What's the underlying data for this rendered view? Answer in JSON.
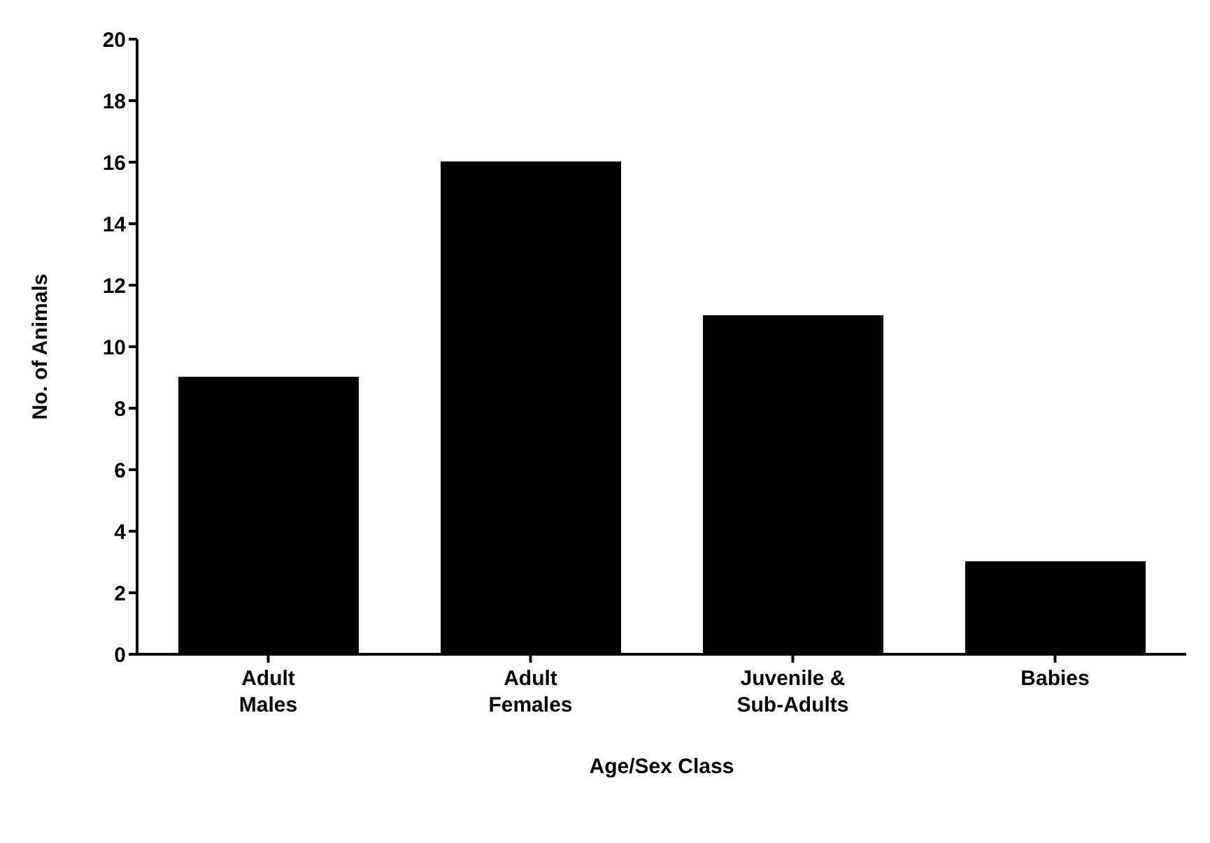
{
  "chart_data": {
    "type": "bar",
    "xlabel": "Age/Sex Class",
    "ylabel": "No. of Animals",
    "categories": [
      "Adult Males",
      "Adult Females",
      "Juvenile & Sub-Adults",
      "Babies"
    ],
    "values": [
      9,
      16,
      11,
      3
    ],
    "color": "#000000",
    "ylim": [
      0,
      20
    ],
    "yticks": [
      0,
      2,
      4,
      6,
      8,
      10,
      12,
      14,
      16,
      18,
      20
    ],
    "grid": false,
    "legend": false
  }
}
